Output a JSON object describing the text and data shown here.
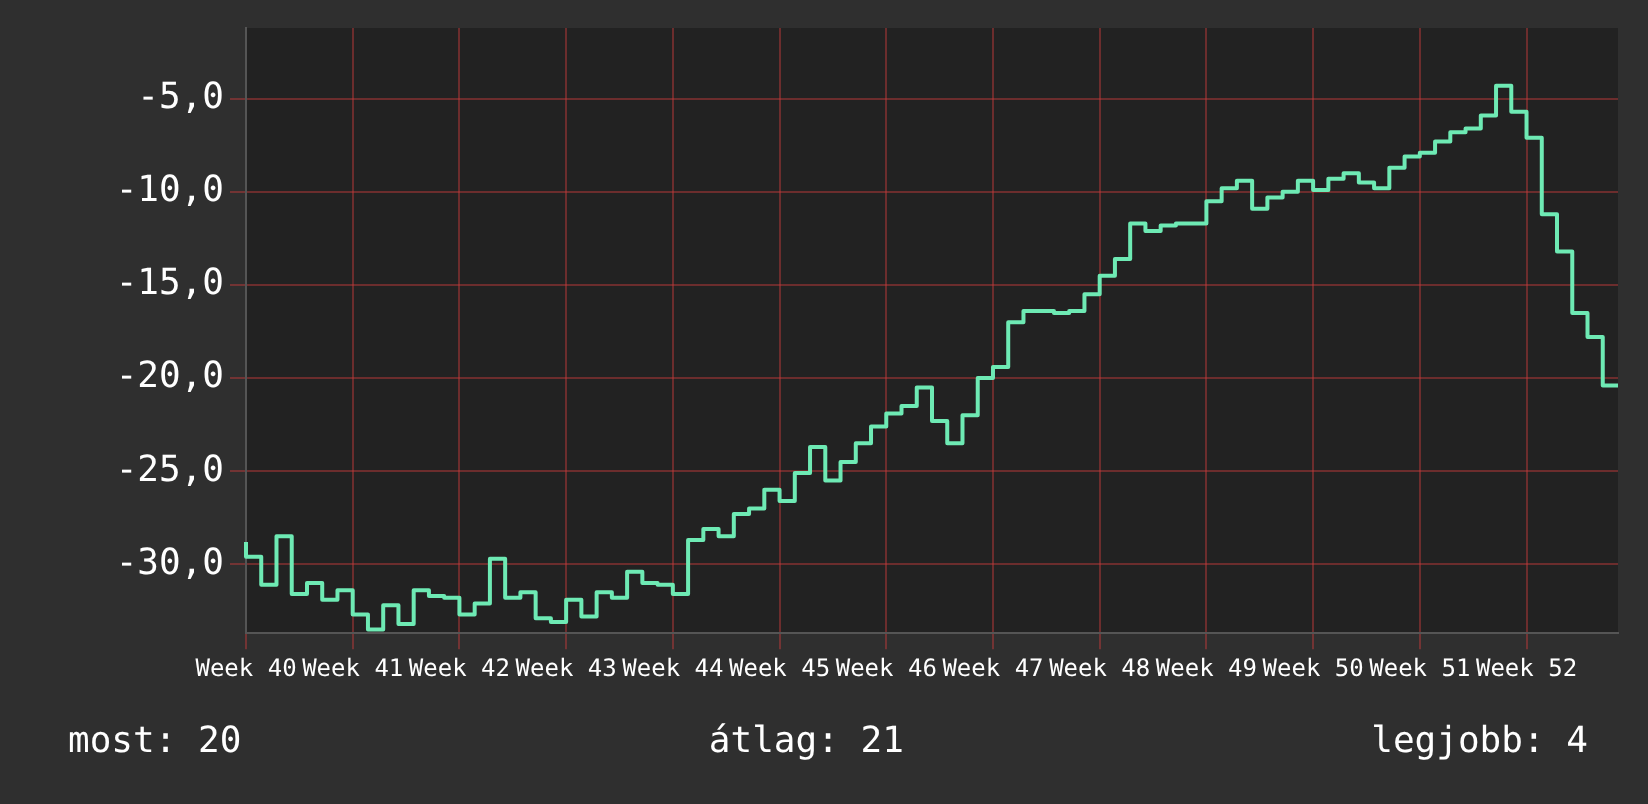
{
  "chart_data": {
    "type": "step",
    "categories": [
      "Week 40",
      null,
      null,
      null,
      null,
      null,
      null,
      "Week 41",
      null,
      null,
      null,
      null,
      null,
      null,
      "Week 42",
      null,
      null,
      null,
      null,
      null,
      null,
      "Week 43",
      null,
      null,
      null,
      null,
      null,
      null,
      "Week 44",
      null,
      null,
      null,
      null,
      null,
      null,
      "Week 45",
      null,
      null,
      null,
      null,
      null,
      null,
      "Week 46",
      null,
      null,
      null,
      null,
      null,
      null,
      "Week 47",
      null,
      null,
      null,
      null,
      null,
      null,
      "Week 48",
      null,
      null,
      null,
      null,
      null,
      null,
      "Week 49",
      null,
      null,
      null,
      null,
      null,
      null,
      "Week 50",
      null,
      null,
      null,
      null,
      null,
      null,
      "Week 51",
      null,
      null,
      null,
      null,
      null,
      null,
      "Week 52",
      null,
      null,
      null,
      null,
      null,
      null
    ],
    "series": [
      {
        "color": "#6eeab4",
        "values": [
          -28.8,
          -29.6,
          -31.1,
          -28.5,
          -31.6,
          -31.0,
          -31.9,
          -31.4,
          -32.7,
          -33.5,
          -32.2,
          -33.2,
          -31.4,
          -31.7,
          -31.8,
          -32.7,
          -32.1,
          -29.7,
          -31.8,
          -31.5,
          -32.9,
          -33.1,
          -31.9,
          -32.8,
          -31.5,
          -31.8,
          -30.4,
          -31.0,
          -31.1,
          -31.6,
          -28.7,
          -28.1,
          -28.5,
          -27.3,
          -27.0,
          -26.0,
          -26.6,
          -25.1,
          -23.7,
          -25.5,
          -24.5,
          -23.5,
          -22.6,
          -21.9,
          -21.5,
          -20.5,
          -22.3,
          -23.5,
          -22.0,
          -20.0,
          -19.4,
          -17.0,
          -16.4,
          -16.4,
          -16.5,
          -16.4,
          -15.5,
          -14.5,
          -13.6,
          -11.7,
          -12.1,
          -11.8,
          -11.7,
          -11.7,
          -10.5,
          -9.8,
          -9.4,
          -10.9,
          -10.3,
          -10.0,
          -9.4,
          -9.9,
          -9.3,
          -9.0,
          -9.5,
          -9.8,
          -8.7,
          -8.1,
          -7.9,
          -7.3,
          -6.8,
          -6.6,
          -5.9,
          -4.3,
          -5.7,
          -7.1,
          -11.2,
          -13.2,
          -16.5,
          -17.8,
          -20.4
        ]
      }
    ],
    "ylim": [
      -33.7,
      -1.2
    ],
    "yticks": [
      {
        "value": -30,
        "label": "-30,0"
      },
      {
        "value": -25,
        "label": "-25,0"
      },
      {
        "value": -20,
        "label": "-20,0"
      },
      {
        "value": -15,
        "label": "-15,0"
      },
      {
        "value": -10,
        "label": "-10,0"
      },
      {
        "value": -5,
        "label": "-5,0"
      }
    ],
    "grid": true,
    "marker": "none",
    "annotations": [
      "most: 20",
      "átlag: 21",
      "legjobb: 4"
    ]
  }
}
